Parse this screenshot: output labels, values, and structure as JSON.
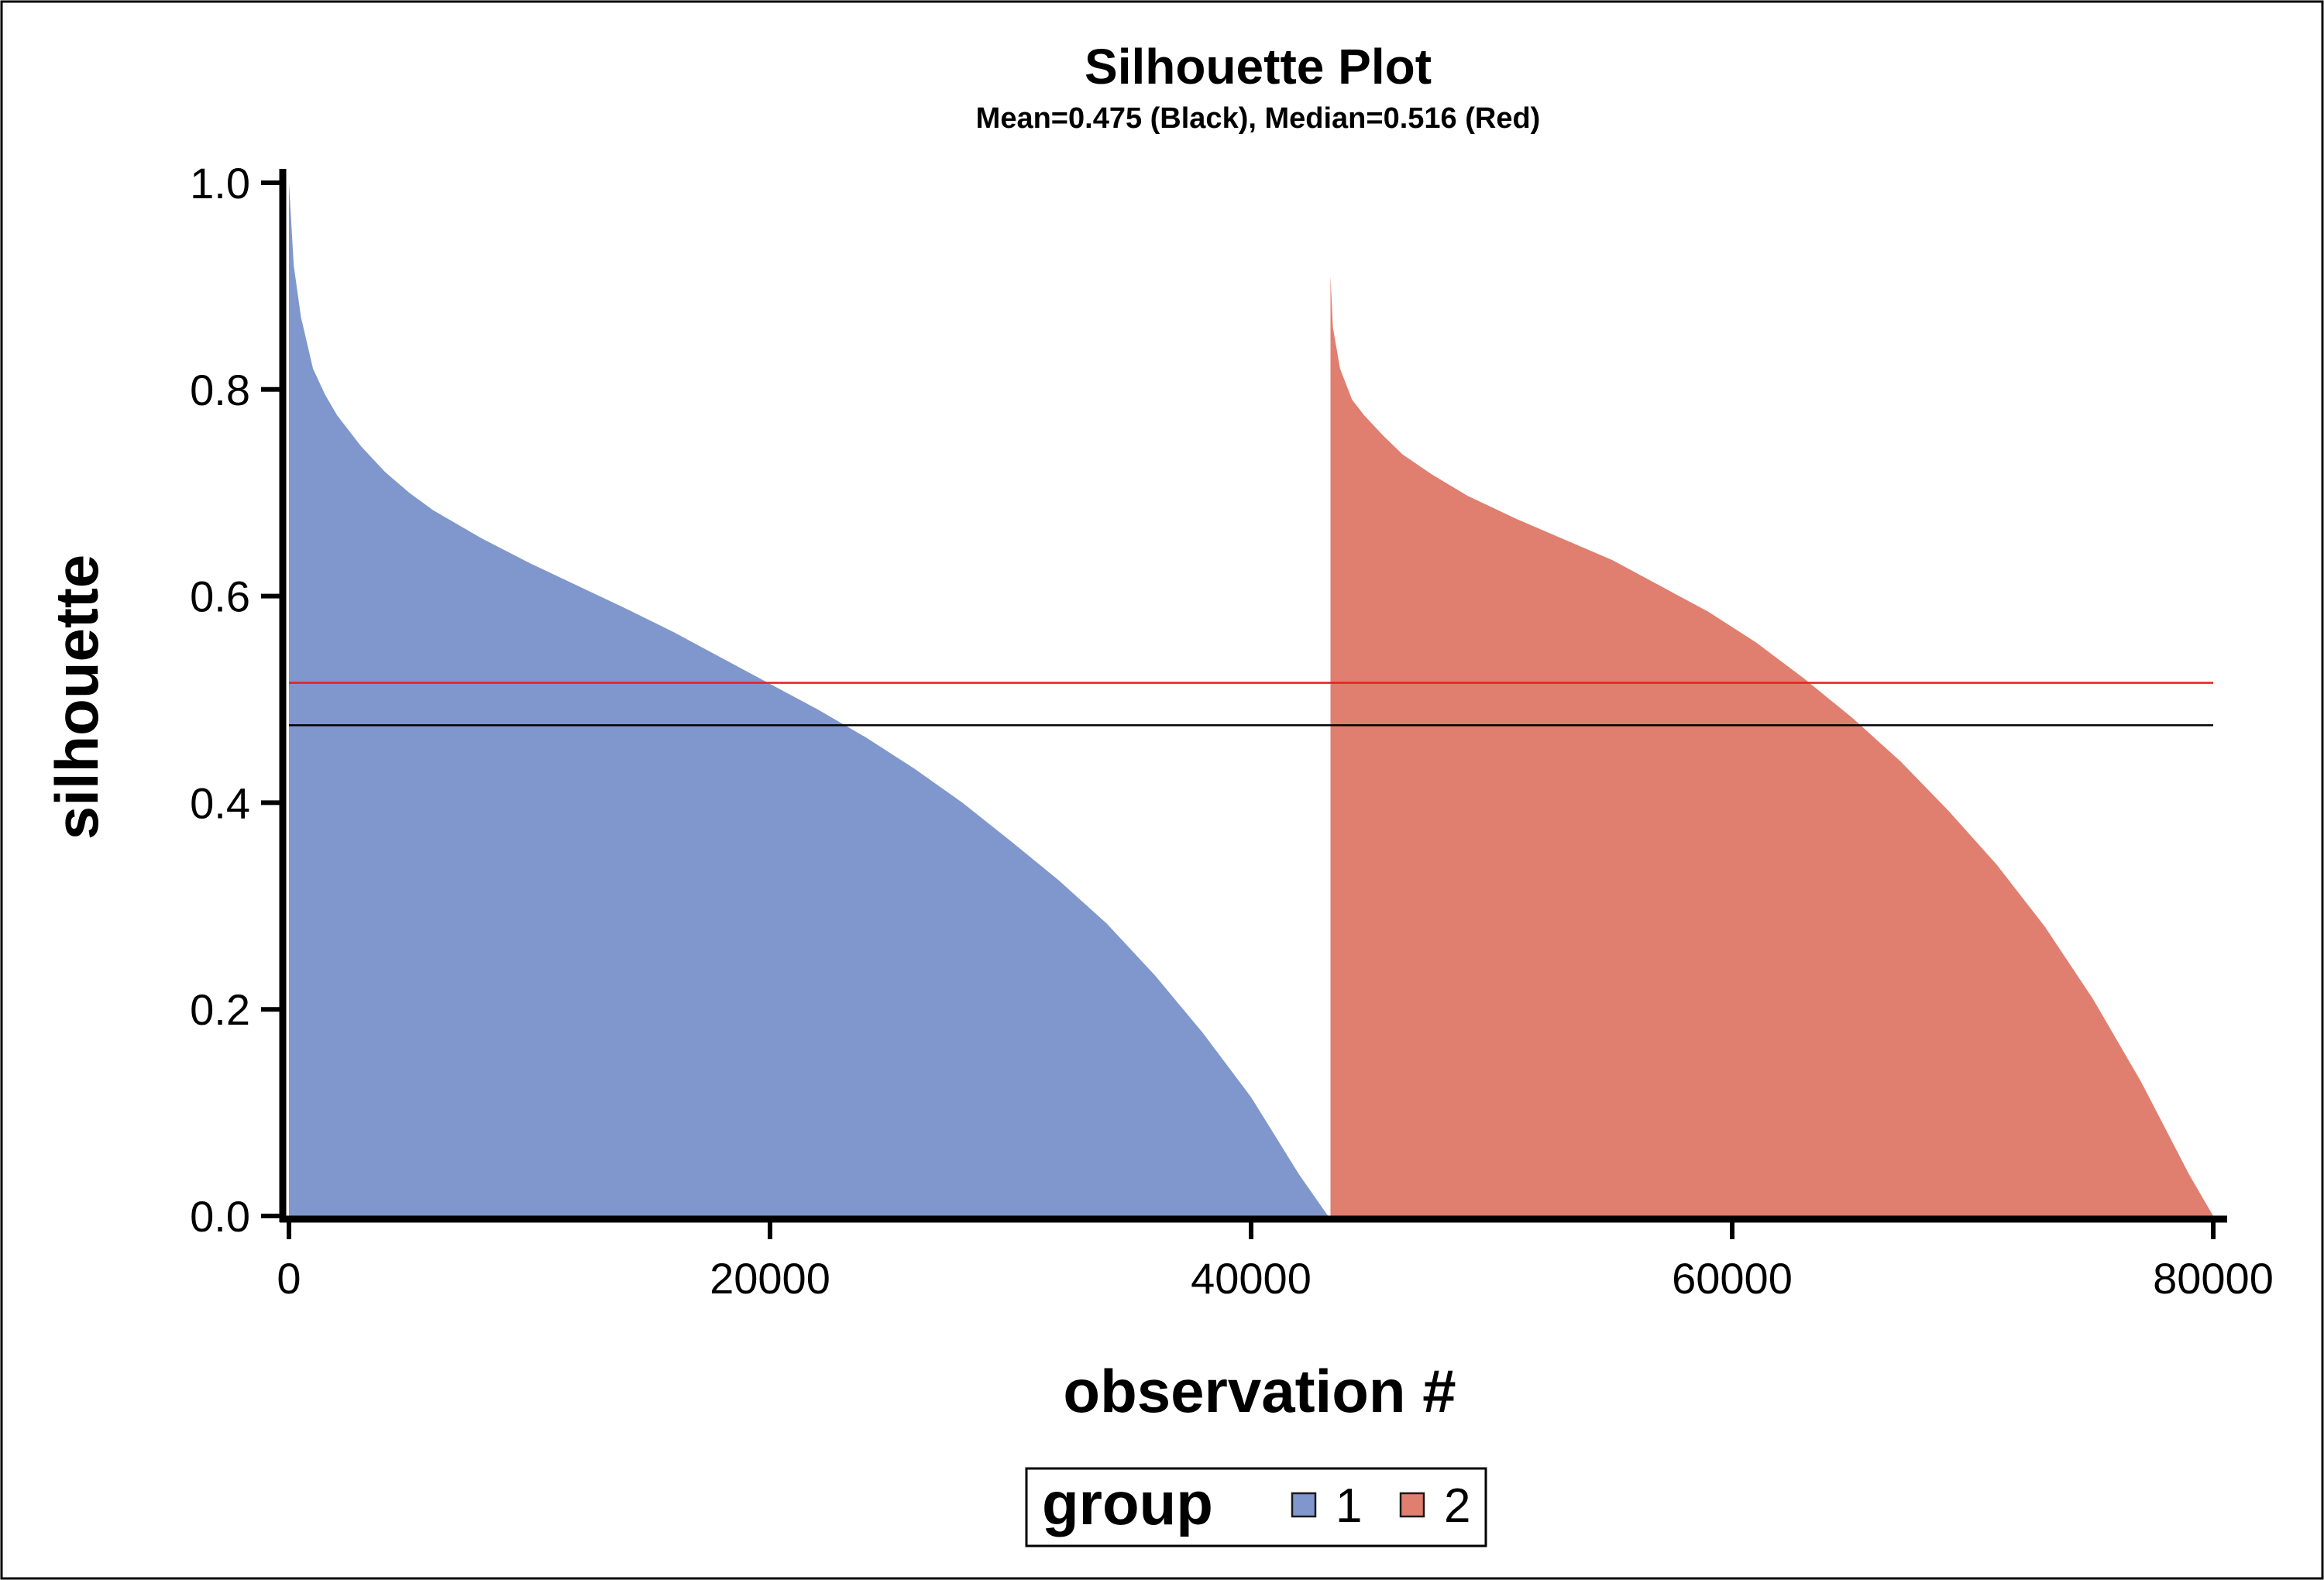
{
  "chart_data": {
    "type": "area",
    "title": "Silhouette Plot",
    "subtitle": "Mean=0.475 (Black), Median=0.516 (Red)",
    "xlabel": "observation #",
    "ylabel": "silhouette",
    "xlim": [
      0,
      80000
    ],
    "ylim": [
      0,
      1.0
    ],
    "xticks": [
      "0",
      "20000",
      "40000",
      "60000",
      "80000"
    ],
    "xtick_values": [
      0,
      20000,
      40000,
      60000,
      80000
    ],
    "yticks": [
      "0.0",
      "0.2",
      "0.4",
      "0.6",
      "0.8",
      "1.0"
    ],
    "ytick_values": [
      0,
      0.2,
      0.4,
      0.6,
      0.8,
      1.0
    ],
    "grid": false,
    "legend": {
      "title": "group",
      "placement": "bottom",
      "items": [
        {
          "label": "1",
          "color": "#7f97cc"
        },
        {
          "label": "2",
          "color": "#e07f6f"
        }
      ]
    },
    "series": [
      {
        "name": "1",
        "color": "#7f97cc",
        "x": [
          0,
          200,
          500,
          1000,
          1500,
          2000,
          3000,
          4000,
          5000,
          6000,
          8000,
          10000,
          12000,
          14000,
          16000,
          18000,
          20000,
          22000,
          24000,
          26000,
          28000,
          30000,
          32000,
          34000,
          36000,
          38000,
          40000,
          42000,
          43200
        ],
        "y": [
          1.0,
          0.92,
          0.87,
          0.82,
          0.795,
          0.775,
          0.745,
          0.72,
          0.7,
          0.683,
          0.656,
          0.632,
          0.61,
          0.588,
          0.565,
          0.54,
          0.515,
          0.49,
          0.463,
          0.433,
          0.4,
          0.363,
          0.325,
          0.283,
          0.233,
          0.177,
          0.115,
          0.04,
          0.0
        ]
      },
      {
        "name": "2",
        "color": "#e07f6f",
        "x": [
          43300,
          43400,
          43700,
          44200,
          44700,
          45500,
          46300,
          47500,
          49000,
          51000,
          53000,
          55000,
          57000,
          59000,
          61000,
          63000,
          65000,
          67000,
          69000,
          71000,
          73000,
          75000,
          77000,
          79000,
          80000
        ],
        "y": [
          0.91,
          0.86,
          0.82,
          0.79,
          0.775,
          0.755,
          0.737,
          0.718,
          0.697,
          0.675,
          0.655,
          0.635,
          0.61,
          0.585,
          0.555,
          0.52,
          0.482,
          0.44,
          0.392,
          0.34,
          0.28,
          0.21,
          0.13,
          0.04,
          0.0
        ]
      }
    ],
    "reference_lines": [
      {
        "y": 0.516,
        "color": "#e8201f",
        "label": "Median"
      },
      {
        "y": 0.475,
        "color": "#000000",
        "label": "Mean"
      }
    ]
  }
}
